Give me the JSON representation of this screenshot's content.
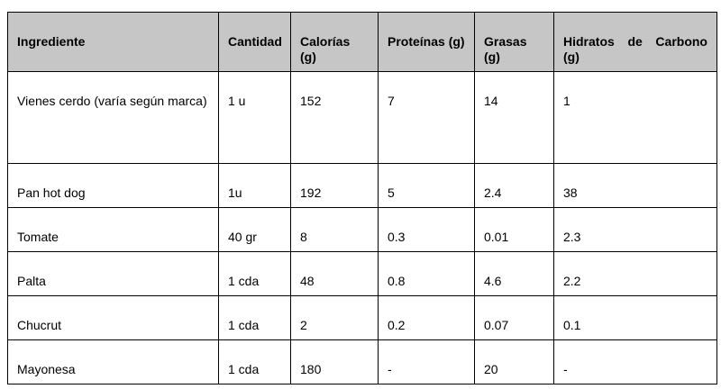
{
  "table": {
    "headers": [
      "Ingrediente",
      "Cantidad",
      "Calorías (g)",
      "Proteínas (g)",
      "Grasas (g)",
      "Hidratos de Carbono (g)"
    ],
    "rows": [
      [
        "Vienes cerdo (varía según marca)",
        "1 u",
        "152",
        "7",
        "14",
        "1"
      ],
      [
        "Pan hot dog",
        "1u",
        "192",
        "5",
        "2.4",
        "38"
      ],
      [
        "Tomate",
        "40 gr",
        "8",
        "0.3",
        "0.01",
        "2.3"
      ],
      [
        "Palta",
        "1 cda",
        "48",
        "0.8",
        "4.6",
        "2.2"
      ],
      [
        "Chucrut",
        "1 cda",
        "2",
        "0.2",
        "0.07",
        "0.1"
      ],
      [
        "Mayonesa",
        "1 cda",
        "180",
        "-",
        "20",
        "-"
      ]
    ]
  }
}
